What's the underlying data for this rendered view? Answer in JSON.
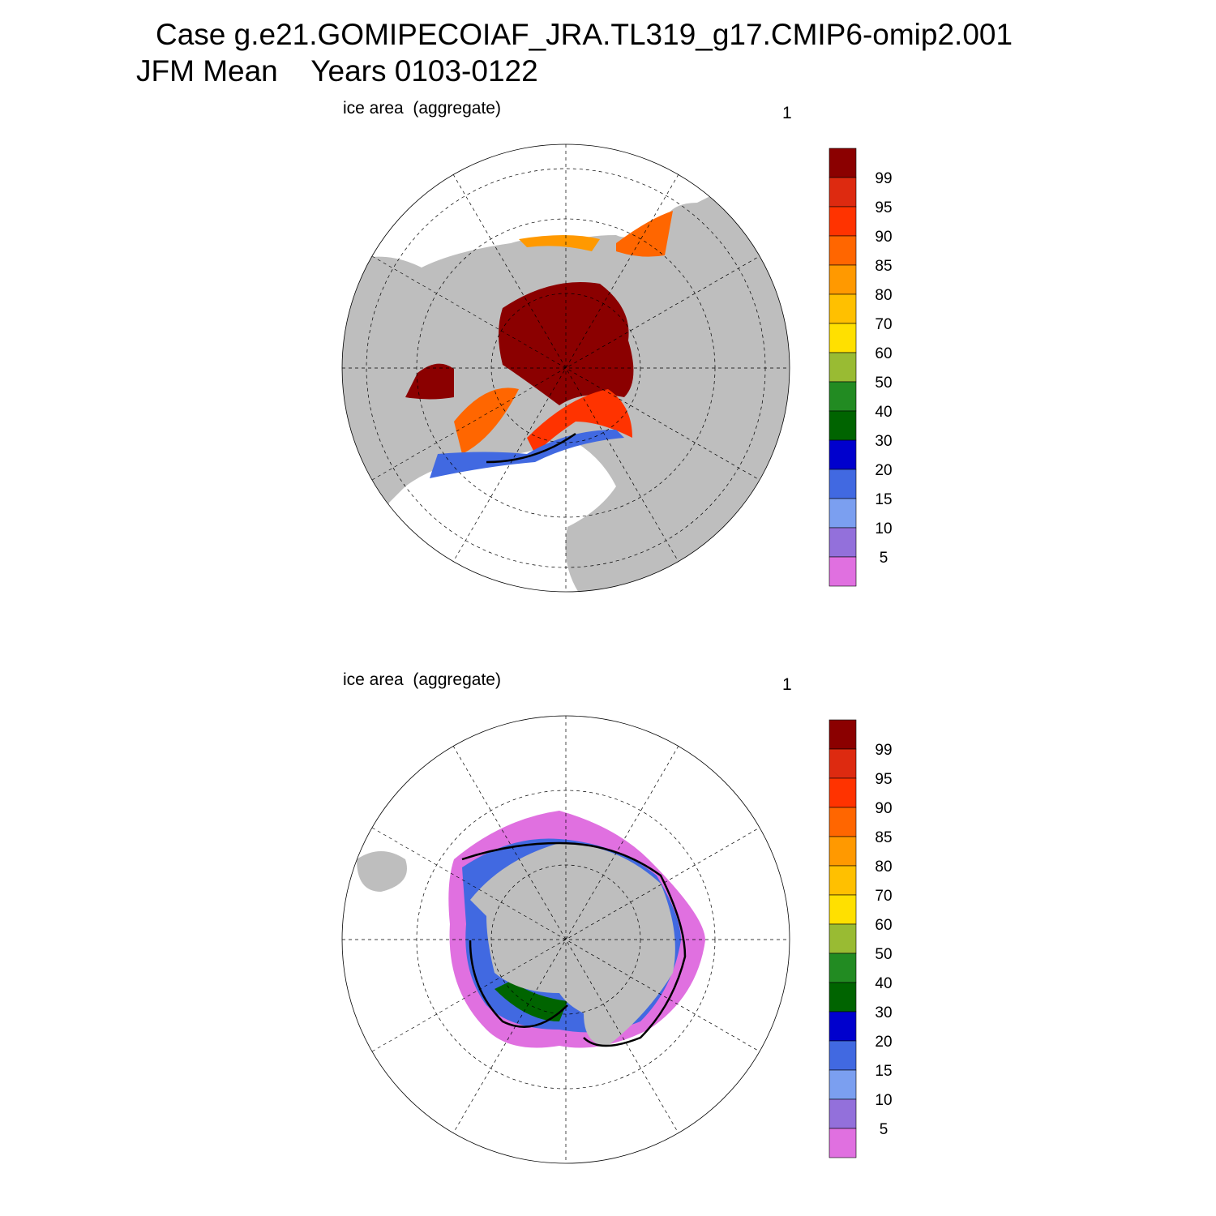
{
  "header": {
    "title_line1": "Case g.e21.GOMIPECOIAF_JRA.TL319_g17.CMIP6-omip2.001",
    "title_line2": "JFM Mean    Years 0103-0122"
  },
  "panels": [
    {
      "title": "ice area  (aggregate)",
      "units": "1",
      "colorbar": {
        "labels": [
          99,
          95,
          90,
          85,
          80,
          70,
          60,
          50,
          40,
          30,
          20,
          15,
          10,
          5
        ],
        "colors": [
          "#8b0000",
          "#dd2a10",
          "#ff3300",
          "#ff6600",
          "#ff9900",
          "#ffc000",
          "#ffe000",
          "#99bb33",
          "#228b22",
          "#006400",
          "#0000cd",
          "#4169e1",
          "#7b9ff0",
          "#9370db",
          "#e070e0"
        ]
      }
    },
    {
      "title": "ice area  (aggregate)",
      "units": "1",
      "colorbar": {
        "labels": [
          99,
          95,
          90,
          85,
          80,
          70,
          60,
          50,
          40,
          30,
          20,
          15,
          10,
          5
        ],
        "colors": [
          "#8b0000",
          "#dd2a10",
          "#ff3300",
          "#ff6600",
          "#ff9900",
          "#ffc000",
          "#ffe000",
          "#99bb33",
          "#228b22",
          "#006400",
          "#0000cd",
          "#4169e1",
          "#7b9ff0",
          "#9370db",
          "#e070e0"
        ]
      }
    }
  ]
}
